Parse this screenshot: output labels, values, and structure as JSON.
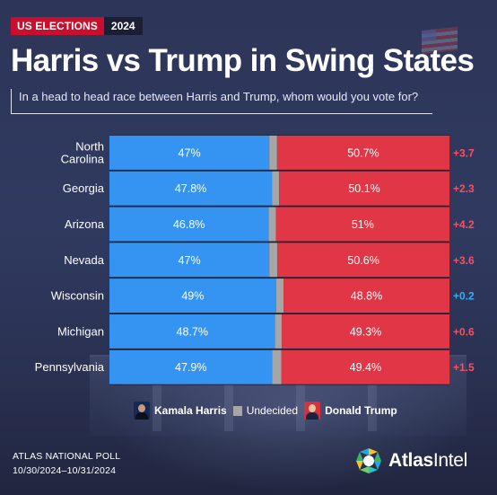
{
  "header": {
    "tag_label": "US ELECTIONS",
    "tag_year": "2024",
    "title": "Harris vs Trump in Swing States",
    "subtitle": "In a head to head race between Harris and Trump, whom would you vote for?"
  },
  "colors": {
    "harris": "#3593f1",
    "trump": "#e03645",
    "undecided": "#a6a6a6",
    "lead_trump": "#ff4d5e",
    "lead_harris": "#2fb0ff",
    "background": "#2b3354"
  },
  "chart_data": {
    "type": "bar",
    "orientation": "horizontal",
    "stacked": true,
    "categories": [
      "North\nCarolina",
      "Georgia",
      "Arizona",
      "Nevada",
      "Wisconsin",
      "Michigan",
      "Pennsylvania"
    ],
    "series": [
      {
        "name": "Kamala Harris",
        "values": [
          47,
          47.8,
          46.8,
          47,
          49,
          48.7,
          47.9
        ],
        "labels": [
          "47%",
          "47.8%",
          "46.8%",
          "47%",
          "49%",
          "48.7%",
          "47.9%"
        ]
      },
      {
        "name": "Undecided",
        "values": [
          2.3,
          2.1,
          2.2,
          2.4,
          2.2,
          2.0,
          2.7
        ]
      },
      {
        "name": "Donald Trump",
        "values": [
          50.7,
          50.1,
          51,
          50.6,
          48.8,
          49.3,
          49.4
        ],
        "labels": [
          "50.7%",
          "50.1%",
          "51%",
          "50.6%",
          "48.8%",
          "49.3%",
          "49.4%"
        ]
      }
    ],
    "margins": [
      "+3.7",
      "+2.3",
      "+4.2",
      "+3.6",
      "+0.2",
      "+0.6",
      "+1.5"
    ],
    "margin_leader": [
      "Donald Trump",
      "Donald Trump",
      "Donald Trump",
      "Donald Trump",
      "Kamala Harris",
      "Donald Trump",
      "Donald Trump"
    ],
    "xlim": [
      0,
      100
    ],
    "legend": "bottom"
  },
  "legend": {
    "harris": "Kamala Harris",
    "undecided": "Undecided",
    "trump": "Donald Trump"
  },
  "footer": {
    "poll_name": "ATLAS NATIONAL POLL",
    "dates": "10/30/2024–10/31/2024",
    "logo_bold": "Atlas",
    "logo_light": "Intel"
  }
}
